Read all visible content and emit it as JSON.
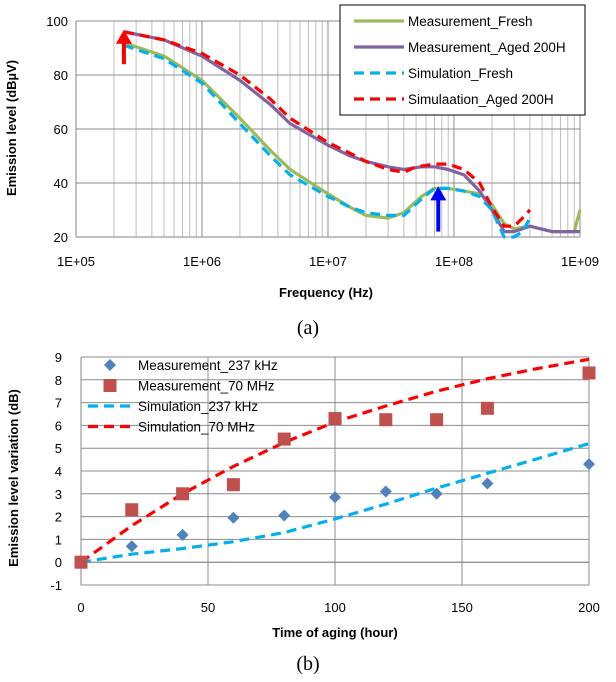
{
  "chart_data": [
    {
      "type": "line",
      "xlabel": "Frequency (Hz)",
      "ylabel": "Emission level (dBµV)",
      "x_scale": "log",
      "xlim": [
        100000,
        1000000000
      ],
      "ylim": [
        20,
        100
      ],
      "yticks": [
        20,
        40,
        60,
        80,
        100
      ],
      "xtick_labels": [
        "1E+05",
        "1E+06",
        "1E+07",
        "1E+08",
        "1E+09"
      ],
      "grid": true,
      "legend_position": "top-right",
      "caption": "(a)",
      "series": [
        {
          "name": "Measurement_Fresh",
          "color": "#9bbb59",
          "style": "solid",
          "x": [
            240000,
            500000,
            1000000,
            2000000,
            3500000,
            5000000,
            10000000,
            15000000,
            20000000,
            30000000,
            40000000,
            55000000,
            70000000,
            90000000,
            120000000,
            160000000,
            200000000,
            250000000,
            300000000,
            400000000,
            600000000,
            800000000,
            900000000,
            1000000000
          ],
          "y": [
            92,
            87,
            78,
            64,
            52,
            45,
            36,
            31,
            28,
            27,
            29,
            35,
            38,
            38,
            37,
            36,
            32,
            25,
            23,
            24,
            22,
            22,
            22,
            30
          ]
        },
        {
          "name": "Measurement_Aged 200H",
          "color": "#8064a2",
          "style": "solid",
          "x": [
            240000,
            500000,
            1000000,
            2000000,
            3500000,
            5000000,
            10000000,
            15000000,
            20000000,
            30000000,
            40000000,
            55000000,
            70000000,
            90000000,
            120000000,
            160000000,
            200000000,
            250000000,
            300000000,
            400000000,
            600000000,
            800000000,
            1000000000
          ],
          "y": [
            96,
            93,
            87,
            78,
            69,
            62,
            54,
            50,
            48,
            46,
            45,
            46,
            46,
            45,
            43,
            37,
            30,
            22,
            22,
            24,
            22,
            22,
            22
          ]
        },
        {
          "name": "Simulation_Fresh",
          "color": "#00b0f0",
          "style": "dashed",
          "x": [
            240000,
            500000,
            1000000,
            2000000,
            3500000,
            5000000,
            10000000,
            15000000,
            20000000,
            30000000,
            40000000,
            55000000,
            70000000,
            90000000,
            120000000,
            160000000,
            200000000,
            250000000,
            300000000,
            350000000,
            400000000
          ],
          "y": [
            91,
            86,
            77,
            62,
            50,
            43,
            35,
            31,
            29,
            28,
            28,
            34,
            38,
            38,
            37,
            35,
            30,
            20,
            20,
            22,
            27
          ]
        },
        {
          "name": "Simulaation_Aged 200H",
          "color": "#ff0000",
          "style": "dashed",
          "x": [
            240000,
            500000,
            1000000,
            2000000,
            3500000,
            5000000,
            10000000,
            15000000,
            20000000,
            30000000,
            40000000,
            50000000,
            70000000,
            90000000,
            120000000,
            160000000,
            200000000,
            250000000,
            300000000,
            350000000,
            400000000
          ],
          "y": [
            96,
            93,
            88,
            80,
            71,
            64,
            55,
            51,
            48,
            45,
            44,
            46,
            47,
            47,
            45,
            40,
            31,
            24,
            24,
            27,
            30
          ]
        }
      ],
      "annotations": [
        {
          "text": "",
          "shape": "arrow-up",
          "x": 240000,
          "y_from": 84,
          "y_to": 96,
          "color": "#ff0000"
        },
        {
          "text": "",
          "shape": "arrow-up",
          "x": 75000000,
          "y_from": 22,
          "y_to": 38,
          "color": "#0000ff"
        }
      ]
    },
    {
      "type": "scatter",
      "xlabel": "Time of aging (hour)",
      "ylabel": "Emission level variation (dB)",
      "xlim": [
        0,
        200
      ],
      "ylim": [
        -1,
        9
      ],
      "xticks": [
        0,
        50,
        100,
        150,
        200
      ],
      "yticks": [
        -1,
        0,
        1,
        2,
        3,
        4,
        5,
        6,
        7,
        8,
        9
      ],
      "grid": true,
      "legend_position": "top-left",
      "caption": "(b)",
      "series": [
        {
          "name": "Measurement_237 kHz",
          "color": "#4f81bd",
          "marker": "diamond",
          "x": [
            0,
            20,
            40,
            60,
            80,
            100,
            120,
            140,
            160,
            200
          ],
          "y": [
            0,
            0.7,
            1.2,
            1.95,
            2.05,
            2.85,
            3.1,
            3.0,
            3.45,
            4.3
          ]
        },
        {
          "name": "Measurement_70 MHz",
          "color": "#c0504d",
          "marker": "square",
          "x": [
            0,
            20,
            40,
            60,
            80,
            100,
            120,
            140,
            160,
            200
          ],
          "y": [
            0,
            2.3,
            3.0,
            3.4,
            5.4,
            6.3,
            6.25,
            6.25,
            6.75,
            8.3
          ]
        },
        {
          "name": "Simulation_237 kHz",
          "color": "#00b0f0",
          "style": "dashed",
          "x": [
            0,
            20,
            40,
            60,
            80,
            100,
            120,
            140,
            160,
            180,
            200
          ],
          "y": [
            0,
            0.35,
            0.6,
            0.9,
            1.3,
            1.9,
            2.55,
            3.25,
            3.9,
            4.55,
            5.2
          ]
        },
        {
          "name": "Simulation_70 MHz",
          "color": "#ff0000",
          "style": "dashed",
          "x": [
            0,
            20,
            40,
            60,
            80,
            100,
            120,
            140,
            160,
            180,
            200
          ],
          "y": [
            0,
            1.6,
            3.0,
            4.2,
            5.25,
            6.15,
            6.85,
            7.5,
            8.05,
            8.5,
            8.9
          ]
        }
      ]
    }
  ]
}
